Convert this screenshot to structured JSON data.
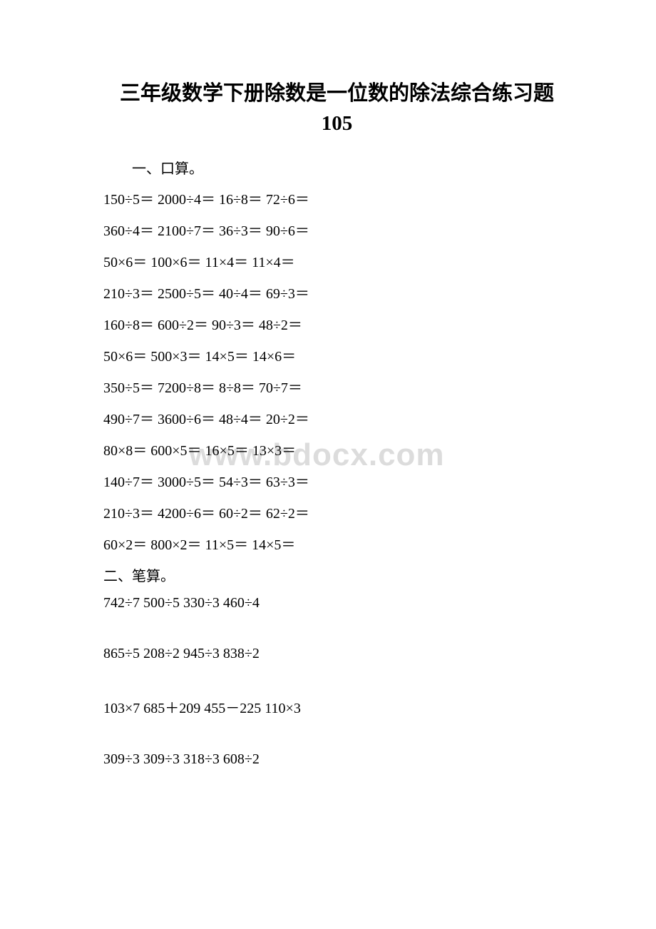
{
  "title": "三年级数学下册除数是一位数的除法综合练习题 105",
  "watermark": "www.bdocx.com",
  "section1": {
    "label": "一、口算。",
    "rows": [
      "150÷5＝   2000÷4＝   16÷8＝   72÷6＝",
      "360÷4＝   2100÷7＝   36÷3＝   90÷6＝",
      "50×6＝   100×6＝   11×4＝   11×4＝",
      "210÷3＝   2500÷5＝   40÷4＝   69÷3＝",
      "160÷8＝   600÷2＝   90÷3＝   48÷2＝",
      "50×6＝   500×3＝   14×5＝   14×6＝",
      "350÷5＝   7200÷8＝   8÷8＝   70÷7＝",
      "490÷7＝   3600÷6＝   48÷4＝   20÷2＝",
      "80×8＝   600×5＝   16×5＝   13×3＝",
      "140÷7＝   3000÷5＝   54÷3＝   63÷3＝",
      "210÷3＝   4200÷6＝   60÷2＝   62÷2＝",
      "60×2＝   800×2＝   11×5＝   14×5＝"
    ]
  },
  "section2": {
    "label": "二、笔算。",
    "rows": [
      "742÷7   500÷5   330÷3   460÷4",
      "865÷5   208÷2   945÷3   838÷2",
      "103×7   685＋209   455－225   110×3",
      "309÷3   309÷3   318÷3   608÷2"
    ]
  },
  "colors": {
    "background": "#ffffff",
    "text": "#000000",
    "watermark": "#dcdcdc"
  },
  "typography": {
    "title_fontsize": 29,
    "body_fontsize": 20,
    "watermark_fontsize": 44,
    "font_family": "SimSun"
  }
}
